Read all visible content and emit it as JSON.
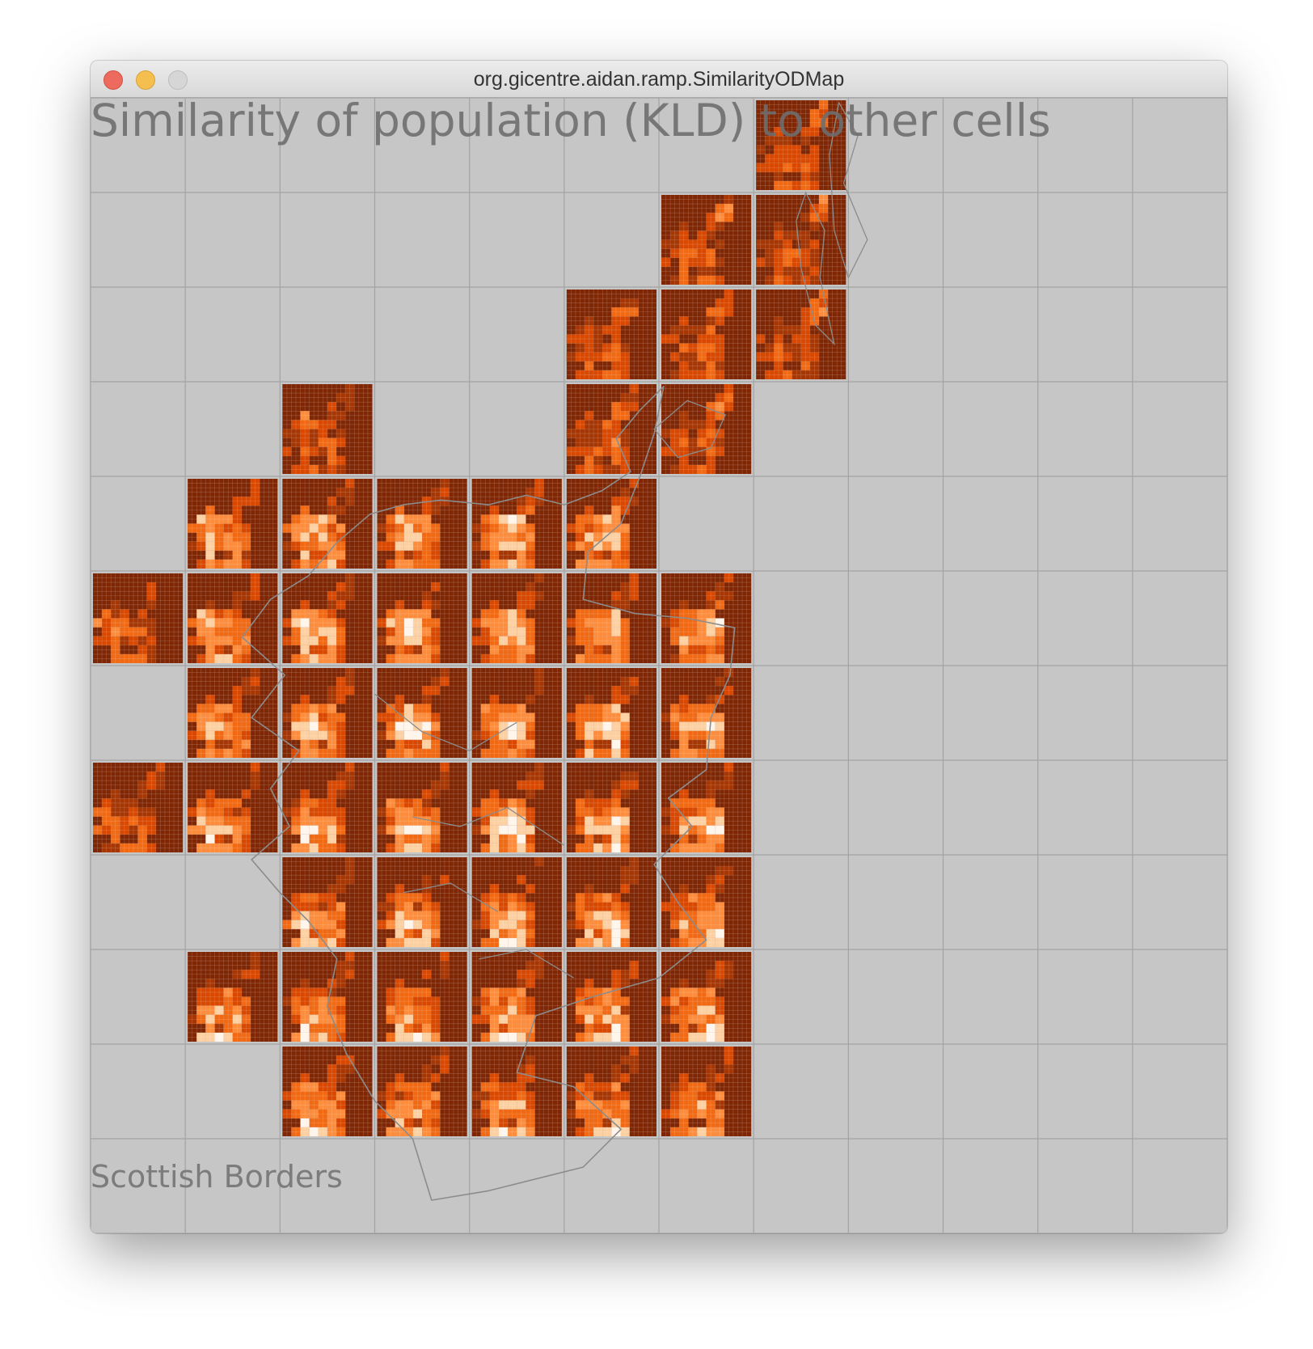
{
  "window": {
    "title": "org.gicentre.aidan.ramp.SimilarityODMap",
    "controls": [
      "close-button",
      "minimize-button",
      "zoom-button"
    ]
  },
  "view": {
    "heading": "Similarity of population (KLD) to other cells",
    "region_label": "Scottish Borders"
  },
  "chart_data": {
    "type": "heatmap",
    "title": "Similarity of population (KLD) to other cells",
    "xlabel": "",
    "ylabel": "",
    "grid": true,
    "outer_grid": {
      "columns": 12,
      "rows": 12
    },
    "inner_grid": {
      "columns": 10,
      "rows": 10
    },
    "occupied_cells": [
      [
        0,
        7
      ],
      [
        1,
        6
      ],
      [
        1,
        7
      ],
      [
        2,
        5
      ],
      [
        2,
        6
      ],
      [
        2,
        7
      ],
      [
        3,
        2
      ],
      [
        3,
        5
      ],
      [
        3,
        6
      ],
      [
        4,
        1
      ],
      [
        4,
        2
      ],
      [
        4,
        3
      ],
      [
        4,
        4
      ],
      [
        4,
        5
      ],
      [
        5,
        0
      ],
      [
        5,
        1
      ],
      [
        5,
        2
      ],
      [
        5,
        3
      ],
      [
        5,
        4
      ],
      [
        5,
        5
      ],
      [
        5,
        6
      ],
      [
        6,
        1
      ],
      [
        6,
        2
      ],
      [
        6,
        3
      ],
      [
        6,
        4
      ],
      [
        6,
        5
      ],
      [
        6,
        6
      ],
      [
        7,
        0
      ],
      [
        7,
        1
      ],
      [
        7,
        2
      ],
      [
        7,
        3
      ],
      [
        7,
        4
      ],
      [
        7,
        5
      ],
      [
        7,
        6
      ],
      [
        8,
        2
      ],
      [
        8,
        3
      ],
      [
        8,
        4
      ],
      [
        8,
        5
      ],
      [
        8,
        6
      ],
      [
        9,
        1
      ],
      [
        9,
        2
      ],
      [
        9,
        3
      ],
      [
        9,
        4
      ],
      [
        9,
        5
      ],
      [
        9,
        6
      ],
      [
        10,
        2
      ],
      [
        10,
        3
      ],
      [
        10,
        4
      ],
      [
        10,
        5
      ],
      [
        10,
        6
      ]
    ],
    "color_scale": [
      "#7f2704",
      "#a63603",
      "#d94801",
      "#f16913",
      "#fd8d3c",
      "#fdd0a2",
      "#fff5eb"
    ],
    "overlay": "Scotland coastline outline (grey)"
  },
  "colors": {
    "background": "#c6c6c6",
    "grid": "#a3a3a3",
    "low_similarity": "#7f2704",
    "high_similarity": "#fff5eb",
    "coastline": "#8c8c8c"
  }
}
